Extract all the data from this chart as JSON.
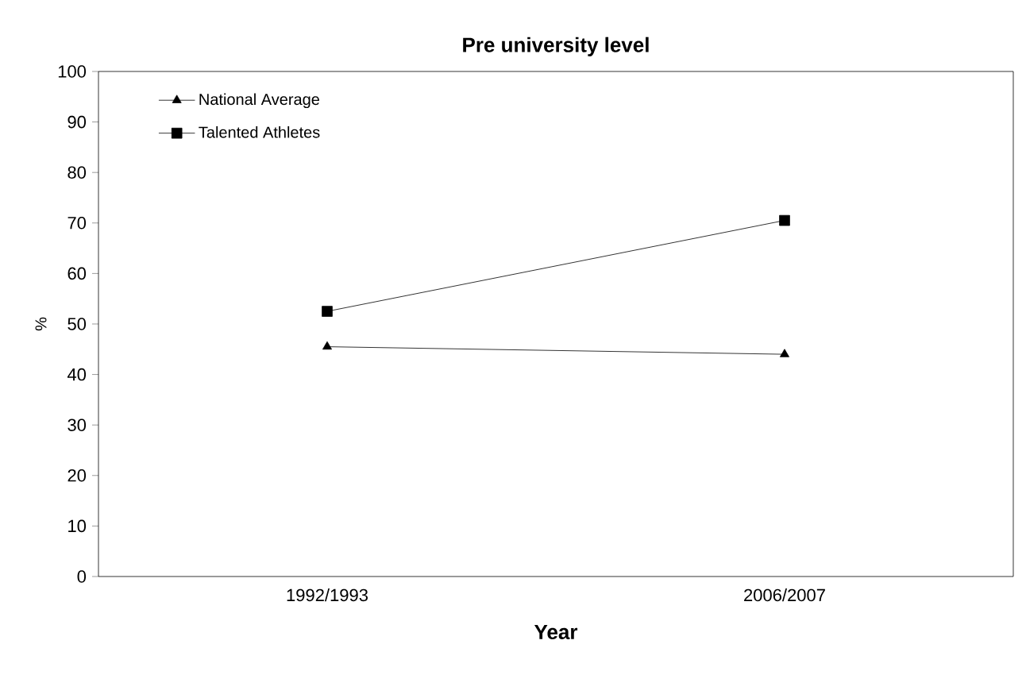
{
  "chart_data": {
    "type": "line",
    "title": "Pre university level",
    "xlabel": "Year",
    "ylabel": "%",
    "categories": [
      "1992/1993",
      "2006/2007"
    ],
    "series": [
      {
        "name": "National Average",
        "color": "#000000",
        "marker": "triangle",
        "values": [
          45.5,
          44
        ]
      },
      {
        "name": "Talented Athletes",
        "color": "#000000",
        "marker": "square",
        "values": [
          52.5,
          70.5
        ]
      }
    ],
    "ylim": [
      0,
      100
    ],
    "yticks": [
      0,
      10,
      20,
      30,
      40,
      50,
      60,
      70,
      80,
      90,
      100
    ],
    "grid": false,
    "legend": "top left",
    "line_style": "solid"
  }
}
